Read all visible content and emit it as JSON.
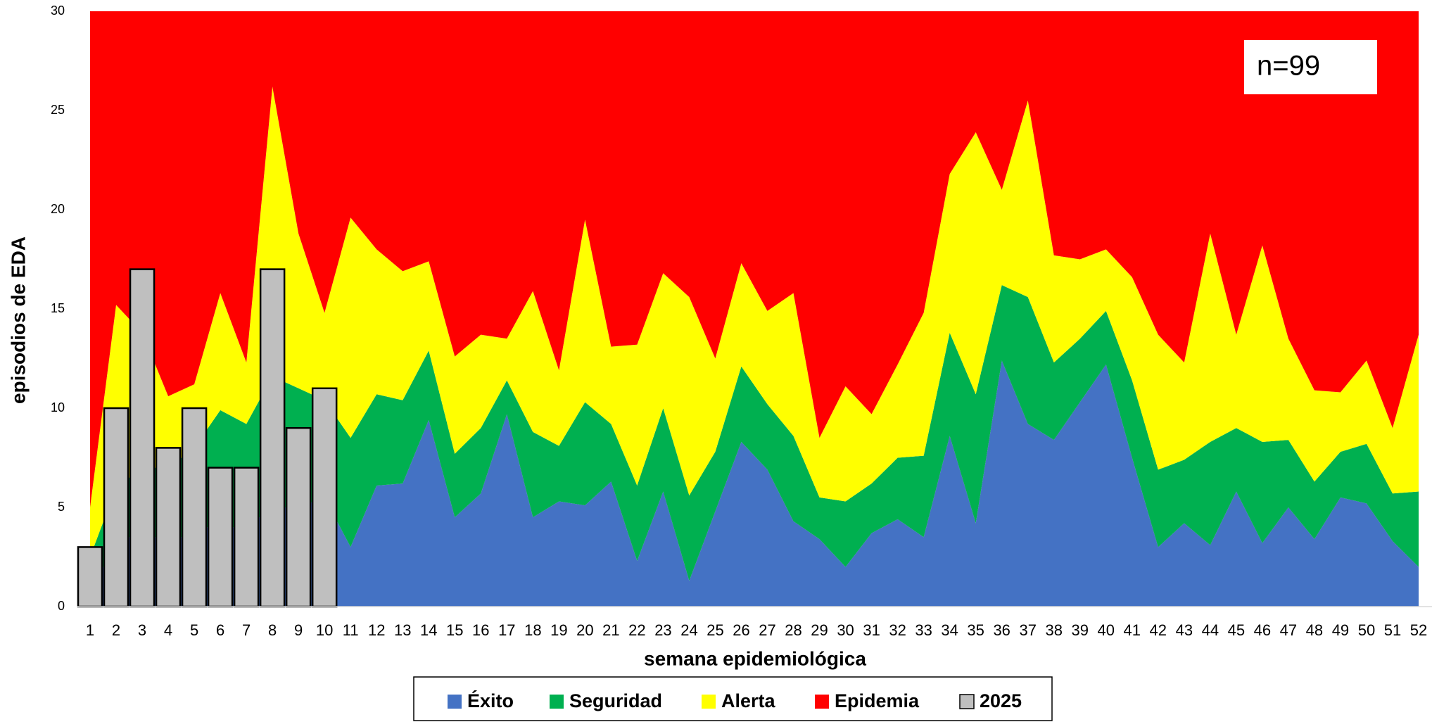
{
  "chart_data": {
    "type": "area",
    "x_label": "semana epidemiológica",
    "y_label": "episodios de EDA",
    "annotation": "n=99",
    "categories": [
      "1",
      "2",
      "3",
      "4",
      "5",
      "6",
      "7",
      "8",
      "9",
      "10",
      "11",
      "12",
      "13",
      "14",
      "15",
      "16",
      "17",
      "18",
      "19",
      "20",
      "21",
      "22",
      "23",
      "24",
      "25",
      "26",
      "27",
      "28",
      "29",
      "30",
      "31",
      "32",
      "33",
      "34",
      "35",
      "36",
      "37",
      "38",
      "39",
      "40",
      "41",
      "42",
      "43",
      "44",
      "45",
      "46",
      "47",
      "48",
      "49",
      "50",
      "51",
      "52"
    ],
    "ylim": [
      0,
      30
    ],
    "yticks": [
      0,
      5,
      10,
      15,
      20,
      25,
      30
    ],
    "legend": "bottom",
    "series": [
      {
        "name": "Éxito",
        "color": "#4472c4",
        "type": "area",
        "values": [
          1,
          3,
          4,
          3,
          4,
          4,
          4,
          5,
          5,
          5.5,
          3,
          6.1,
          6.2,
          9.4,
          4.5,
          5.7,
          9.7,
          4.5,
          5.3,
          5.1,
          6.3,
          2.3,
          5.8,
          1.3,
          4.8,
          8.3,
          6.9,
          4.3,
          3.4,
          2,
          3.7,
          4.4,
          3.5,
          8.6,
          4.2,
          12.4,
          9.2,
          8.4,
          10.3,
          12.2,
          7.5,
          3,
          4.2,
          3.1,
          5.8,
          3.2,
          5,
          3.4,
          5.5,
          5.2,
          3.3,
          2
        ]
      },
      {
        "name": "Seguridad",
        "color": "#00b050",
        "type": "area",
        "values": [
          1.5,
          3,
          3,
          4,
          4,
          5.9,
          5.2,
          6.6,
          6,
          4.9,
          5.5,
          4.6,
          4.2,
          3.5,
          3.2,
          3.3,
          1.7,
          4.3,
          2.8,
          5.2,
          2.9,
          3.8,
          4.2,
          4.3,
          3,
          3.8,
          3.3,
          4.3,
          2.1,
          3.3,
          2.5,
          3.1,
          4.1,
          5.2,
          6.5,
          3.8,
          6.4,
          3.9,
          3.2,
          2.7,
          3.9,
          3.9,
          3.2,
          5.2,
          3.2,
          5.1,
          3.4,
          2.9,
          2.3,
          3,
          2.4,
          3.8
        ]
      },
      {
        "name": "Alerta",
        "color": "#ffff00",
        "type": "area",
        "values": [
          2.5,
          9.2,
          6.8,
          3.6,
          3.2,
          5.9,
          3.1,
          14.6,
          7.8,
          4.4,
          11.1,
          7.3,
          6.5,
          4.5,
          4.9,
          4.7,
          2.1,
          7.1,
          3.8,
          9.2,
          3.9,
          7.1,
          6.8,
          10,
          4.7,
          5.2,
          4.7,
          7.2,
          3,
          5.8,
          3.5,
          4.7,
          7.2,
          8,
          13.2,
          4.8,
          9.9,
          5.4,
          4,
          3.1,
          5.2,
          6.8,
          4.9,
          10.5,
          4.7,
          9.9,
          5.1,
          4.6,
          3,
          4.2,
          3.3,
          7.9
        ]
      },
      {
        "name": "Epidemia",
        "color": "#ff0000",
        "type": "area",
        "values": [
          25,
          14.8,
          16.2,
          19.4,
          18.8,
          14.2,
          17.7,
          3.8,
          11.2,
          15.2,
          10.4,
          12,
          13.1,
          12.6,
          17.4,
          16.3,
          16.5,
          14.1,
          18.1,
          10.5,
          16.9,
          16.8,
          13.2,
          14.4,
          17.5,
          12.7,
          15.1,
          14.2,
          21.5,
          18.9,
          20.3,
          17.8,
          15.2,
          8.2,
          6.1,
          9,
          4.5,
          12.3,
          12.5,
          12,
          13.4,
          16.3,
          17.7,
          11.2,
          16.3,
          11.8,
          16.5,
          19.1,
          19.2,
          17.6,
          21,
          16.3
        ]
      },
      {
        "name": "2025",
        "color": "#bfbfbf",
        "type": "bar",
        "values": [
          3,
          10,
          17,
          8,
          10,
          7,
          7,
          17,
          9,
          11,
          null,
          null,
          null,
          null,
          null,
          null,
          null,
          null,
          null,
          null,
          null,
          null,
          null,
          null,
          null,
          null,
          null,
          null,
          null,
          null,
          null,
          null,
          null,
          null,
          null,
          null,
          null,
          null,
          null,
          null,
          null,
          null,
          null,
          null,
          null,
          null,
          null,
          null,
          null,
          null,
          null,
          null
        ]
      }
    ]
  }
}
